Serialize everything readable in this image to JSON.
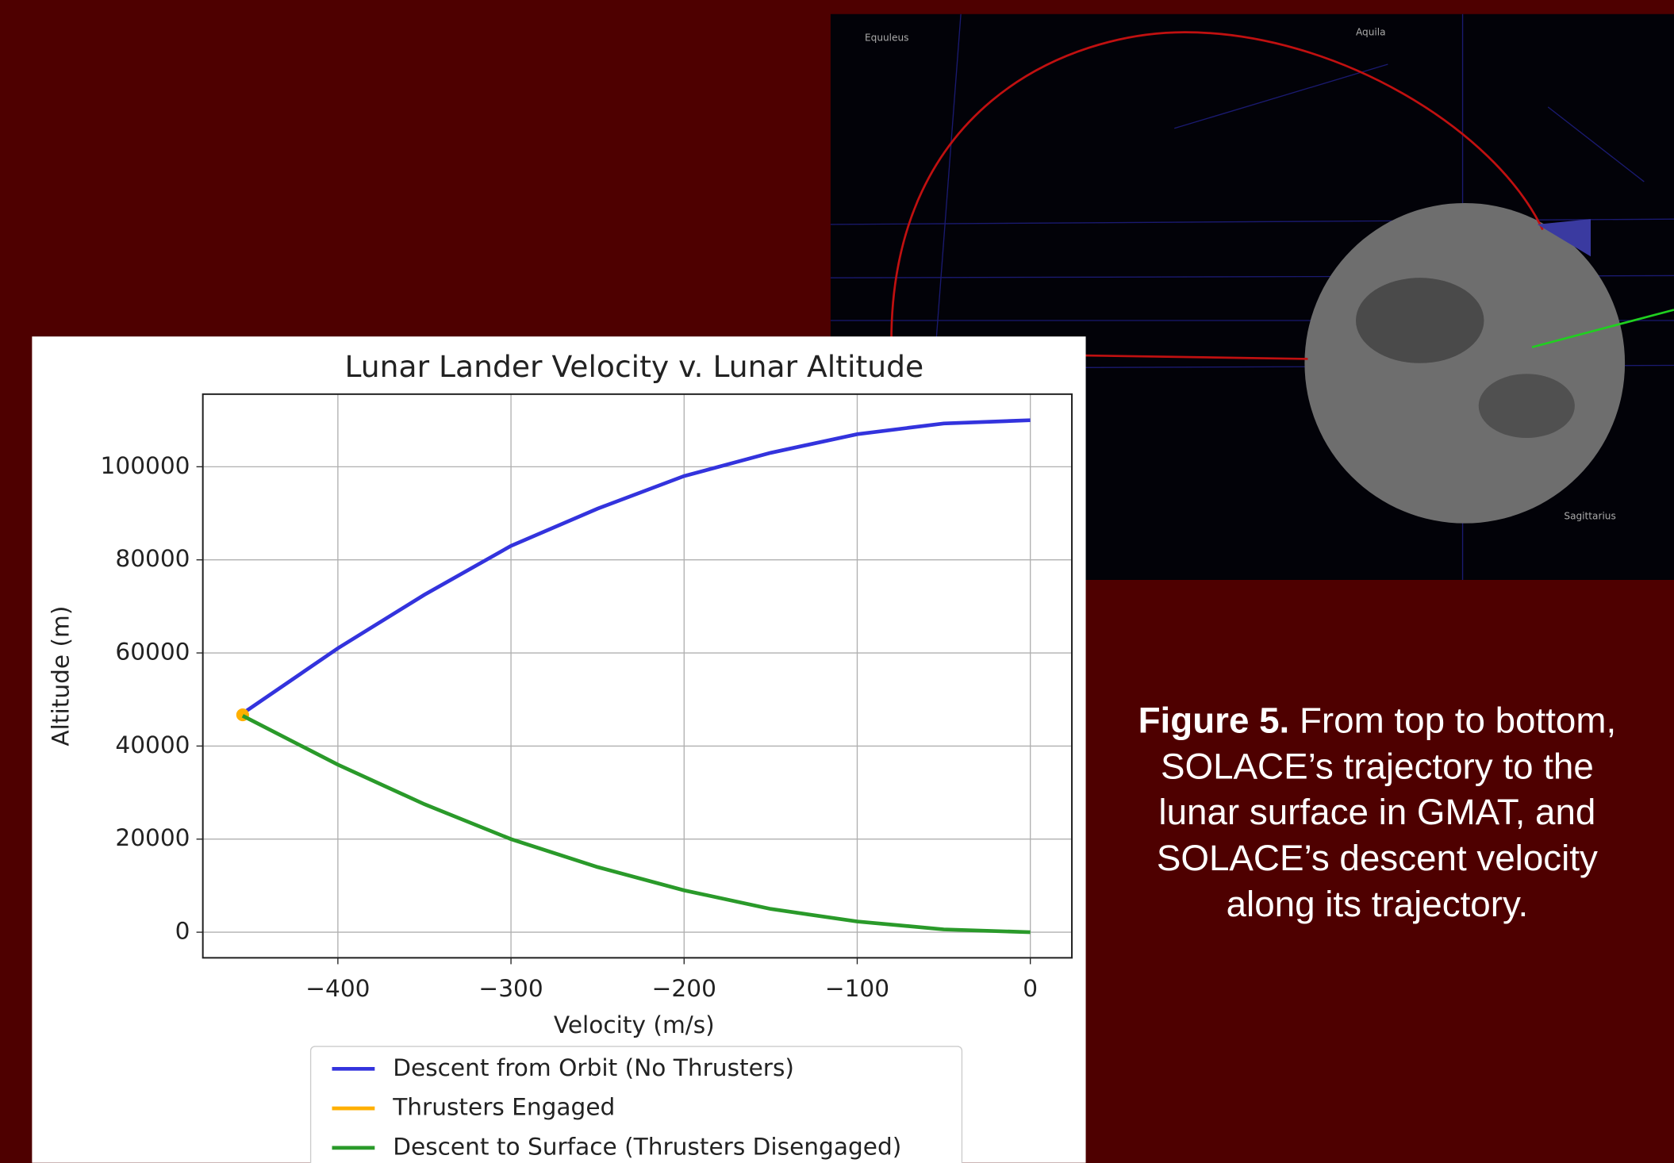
{
  "chart_data": {
    "type": "line",
    "title": "Lunar Lander Velocity v. Lunar Altitude",
    "xlabel": "Velocity (m/s)",
    "ylabel": "Altitude (m)",
    "xlim": [
      -478,
      24
    ],
    "ylim": [
      -5500,
      115600
    ],
    "xticks": [
      {
        "value": -400,
        "label": "−400"
      },
      {
        "value": -300,
        "label": "−300"
      },
      {
        "value": -200,
        "label": "−200"
      },
      {
        "value": -100,
        "label": "−100"
      },
      0
    ],
    "yticks": [
      0,
      20000,
      40000,
      60000,
      80000,
      100000
    ],
    "grid": true,
    "series": [
      {
        "name": "Descent from Orbit (No Thrusters)",
        "color": "#3333dd",
        "x": [
          -455,
          -400,
          -350,
          -300,
          -250,
          -200,
          -150,
          -100,
          -50,
          0
        ],
        "values": [
          47000,
          61000,
          72500,
          83000,
          91000,
          98000,
          103000,
          107000,
          109300,
          110000
        ]
      },
      {
        "name": "Thrusters Engaged",
        "color": "#ffb000",
        "x": [
          -455
        ],
        "values": [
          46700
        ]
      },
      {
        "name": "Descent to Surface (Thrusters Disengaged)",
        "color": "#2a9a2a",
        "x": [
          -455,
          -400,
          -350,
          -300,
          -250,
          -200,
          -150,
          -100,
          -50,
          0
        ],
        "values": [
          46500,
          36000,
          27500,
          20000,
          14000,
          9000,
          5000,
          2300,
          600,
          0
        ]
      }
    ]
  },
  "gmat_view": {
    "labels": [
      "Equuleus",
      "Aquila",
      "Sagittarius"
    ]
  },
  "caption": {
    "label": "Figure 5.",
    "lines": [
      "From top to bottom,",
      "SOLACE’s trajectory to the",
      "lunar surface in GMAT, and",
      "SOLACE’s descent velocity",
      "along its trajectory."
    ]
  }
}
